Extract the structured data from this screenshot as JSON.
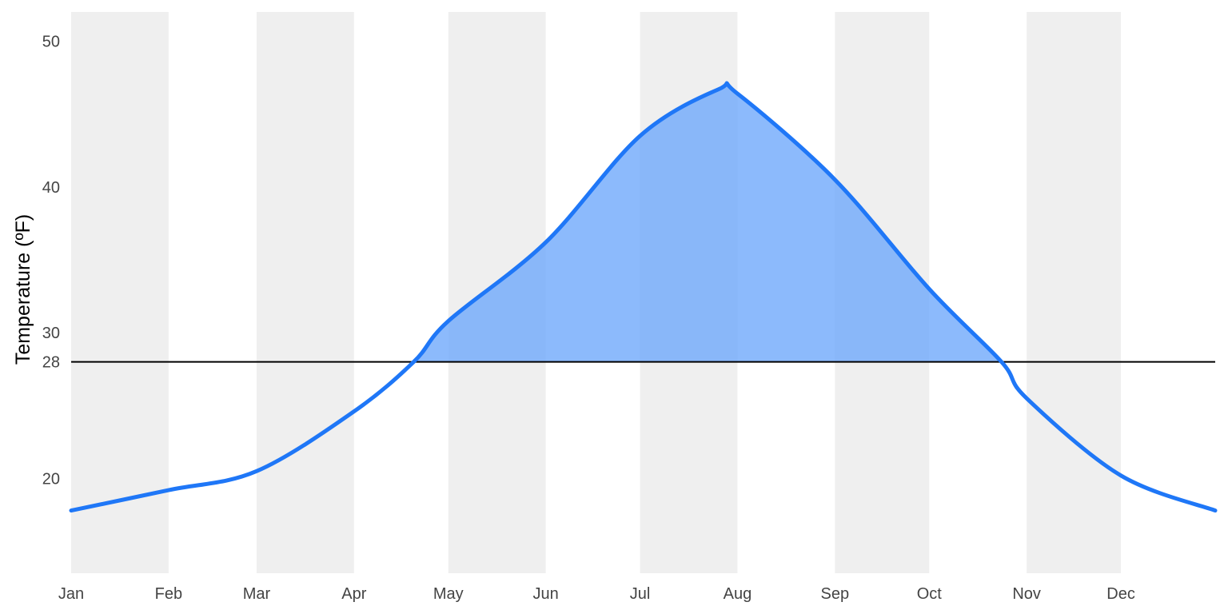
{
  "chart_data": {
    "type": "area",
    "ylabel": "Temperature (ºF)",
    "ylim": [
      13.5,
      52
    ],
    "xlim": [
      "Jan",
      "Dec 31"
    ],
    "x_ticks": [
      "Jan",
      "Feb",
      "Mar",
      "Apr",
      "May",
      "Jun",
      "Jul",
      "Aug",
      "Sep",
      "Oct",
      "Nov",
      "Dec"
    ],
    "y_ticks": [
      20,
      28,
      30,
      40,
      50
    ],
    "reference_line": {
      "value": 28
    },
    "fill_above_reference": true,
    "alternating_month_shading": true,
    "grid": false,
    "legend": "none",
    "series": [
      {
        "x": [
          "Jan 1",
          "Feb 1",
          "Mar 1",
          "Apr 1",
          "Apr 20",
          "May 1",
          "Jun 1",
          "Jul 1",
          "Jul 26",
          "Aug 1",
          "Sep 1",
          "Oct 1",
          "Oct 24",
          "Nov 1",
          "Dec 1",
          "Dec 31"
        ],
        "values": [
          17.8,
          19.2,
          20.5,
          24.6,
          28.0,
          30.8,
          36.2,
          43.5,
          46.7,
          46.4,
          40.5,
          33.0,
          28.0,
          25.5,
          20.2,
          17.8
        ]
      }
    ],
    "colors": {
      "line": "#1f77f7",
      "fill": "#6fa9fb",
      "month_band": "#efefef",
      "reference_line": "#000000"
    }
  }
}
